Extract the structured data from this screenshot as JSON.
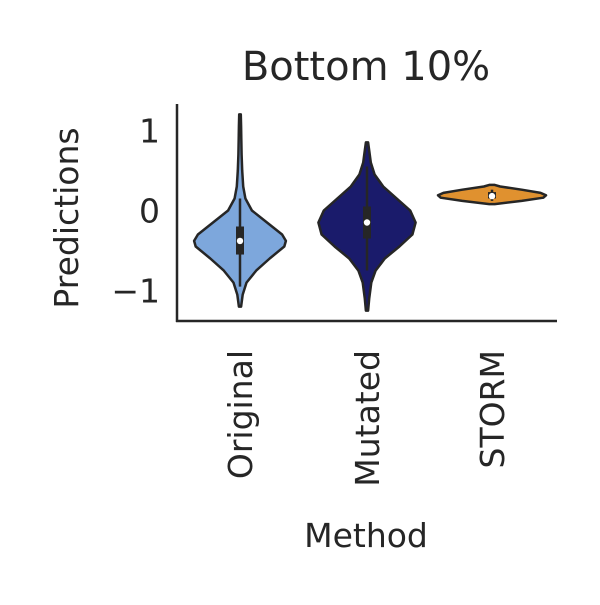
{
  "chart_data": {
    "type": "violin",
    "title": "Bottom 10%",
    "xlabel": "Method",
    "ylabel": "Predictions",
    "categories": [
      "Original",
      "Mutated",
      "STORM"
    ],
    "ylim": [
      -1.38,
      1.33
    ],
    "yticks": [
      {
        "value": 1,
        "label": "1"
      },
      {
        "value": 0,
        "label": "0"
      },
      {
        "value": -1,
        "label": "−1"
      }
    ],
    "grid": false,
    "violins": [
      {
        "category": "Original",
        "color": "#7da7dc",
        "min": -1.2,
        "max": 1.2,
        "q1": -0.55,
        "median": -0.38,
        "q3": -0.2,
        "whisker_low": -0.95,
        "whisker_high": 0.15,
        "density": [
          [
            -1.2,
            0.02
          ],
          [
            -1.05,
            0.05
          ],
          [
            -0.9,
            0.12
          ],
          [
            -0.75,
            0.3
          ],
          [
            -0.6,
            0.55
          ],
          [
            -0.45,
            0.82
          ],
          [
            -0.38,
            0.85
          ],
          [
            -0.3,
            0.78
          ],
          [
            -0.15,
            0.5
          ],
          [
            0.0,
            0.22
          ],
          [
            0.15,
            0.1
          ],
          [
            0.3,
            0.06
          ],
          [
            0.5,
            0.04
          ],
          [
            0.7,
            0.03
          ],
          [
            0.9,
            0.025
          ],
          [
            1.05,
            0.02
          ],
          [
            1.2,
            0.015
          ]
        ]
      },
      {
        "category": "Mutated",
        "color": "#1a1b6b",
        "min": -1.25,
        "max": 0.85,
        "q1": -0.35,
        "median": -0.15,
        "q3": 0.05,
        "whisker_low": -0.75,
        "whisker_high": 0.55,
        "density": [
          [
            -1.25,
            0.02
          ],
          [
            -1.1,
            0.04
          ],
          [
            -0.9,
            0.08
          ],
          [
            -0.75,
            0.16
          ],
          [
            -0.6,
            0.33
          ],
          [
            -0.45,
            0.6
          ],
          [
            -0.3,
            0.84
          ],
          [
            -0.15,
            0.9
          ],
          [
            0.0,
            0.8
          ],
          [
            0.15,
            0.55
          ],
          [
            0.3,
            0.3
          ],
          [
            0.45,
            0.14
          ],
          [
            0.6,
            0.07
          ],
          [
            0.75,
            0.04
          ],
          [
            0.85,
            0.02
          ]
        ]
      },
      {
        "category": "STORM",
        "color": "#e0912f",
        "min": 0.08,
        "max": 0.32,
        "q1": 0.15,
        "median": 0.18,
        "q3": 0.23,
        "whisker_low": 0.12,
        "whisker_high": 0.26,
        "density": [
          [
            0.08,
            0.05
          ],
          [
            0.12,
            0.55
          ],
          [
            0.16,
            0.95
          ],
          [
            0.19,
            1.0
          ],
          [
            0.22,
            0.9
          ],
          [
            0.26,
            0.55
          ],
          [
            0.3,
            0.15
          ],
          [
            0.32,
            0.05
          ]
        ]
      }
    ]
  }
}
